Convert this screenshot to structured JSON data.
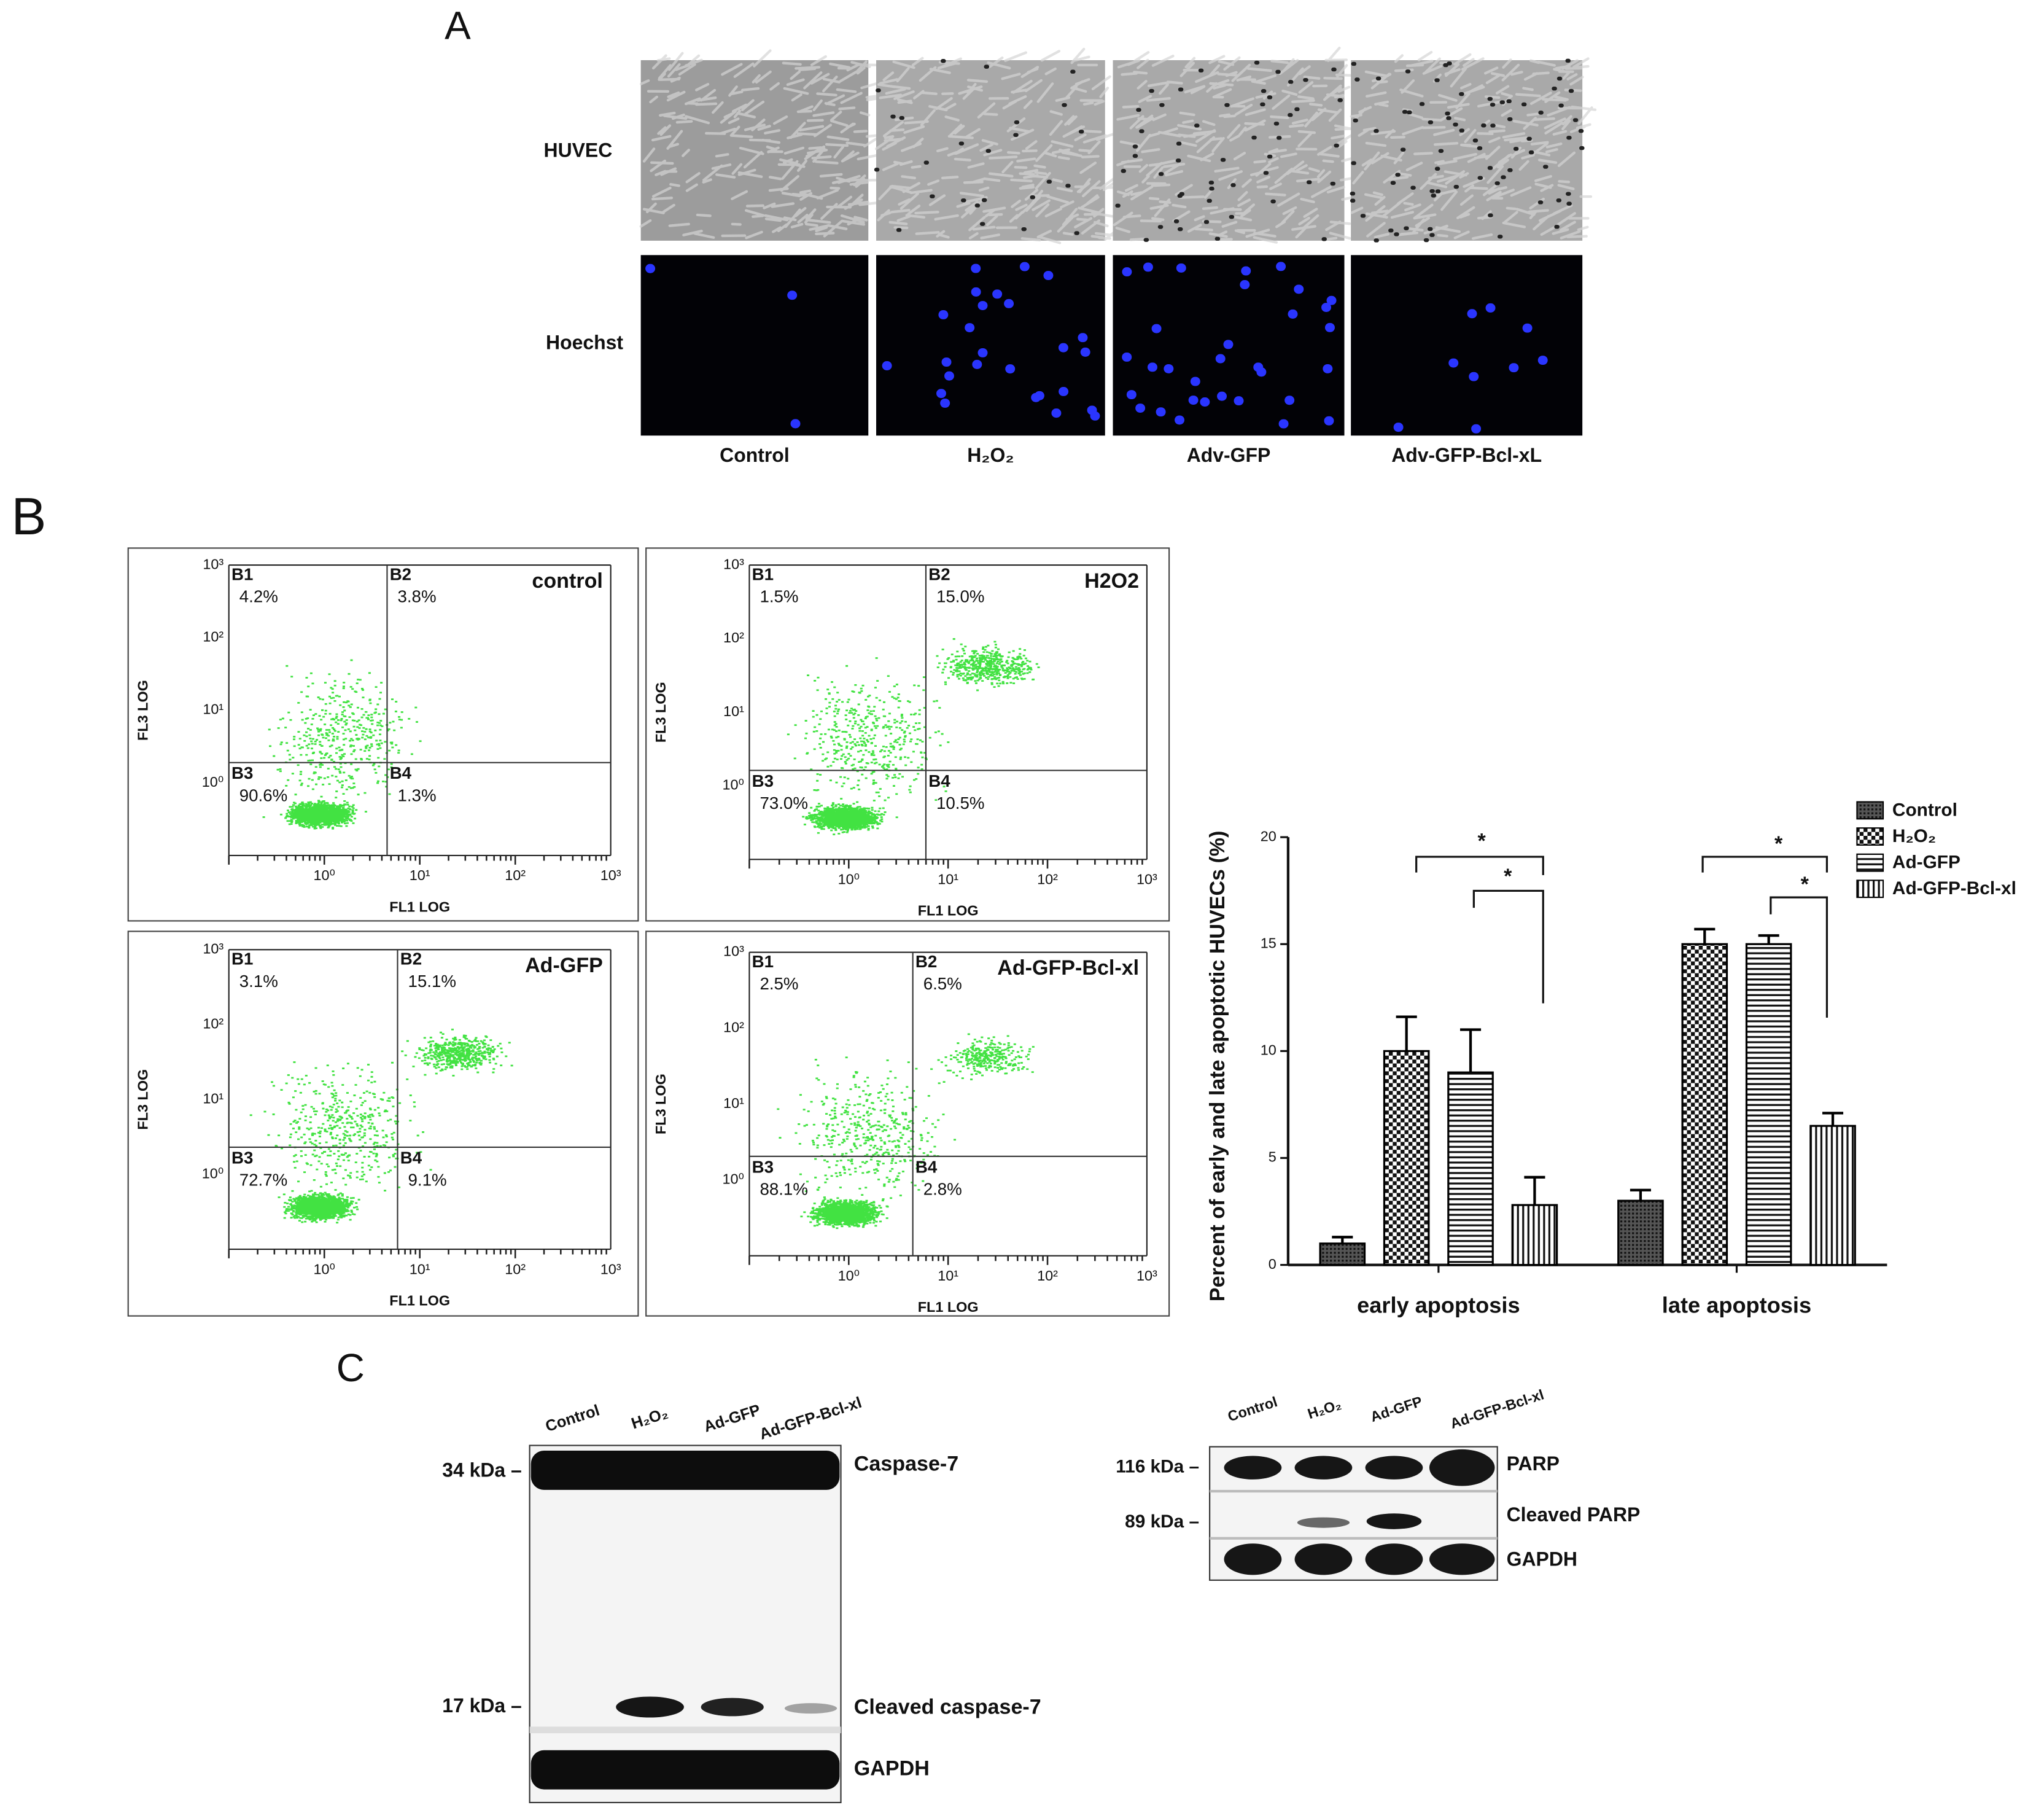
{
  "panel_labels": [
    "A",
    "B",
    "C"
  ],
  "panel_a": {
    "row_labels": [
      "HUVEC",
      "Hoechst"
    ],
    "columns": [
      "Control",
      "H₂O₂",
      "Adv-GFP",
      "Adv-GFP-Bcl-xL"
    ]
  },
  "flow_cytometry": {
    "x_label": "FL1 LOG",
    "y_label": "FL3 LOG",
    "ticks": [
      "10⁰",
      "10¹",
      "10²",
      "10³"
    ],
    "plots": [
      {
        "title": "control",
        "gates": [
          {
            "name": "B1",
            "value": "4.2%"
          },
          {
            "name": "B2",
            "value": "3.8%"
          },
          {
            "name": "B3",
            "value": "90.6%"
          },
          {
            "name": "B4",
            "value": "1.3%"
          }
        ]
      },
      {
        "title": "H2O2",
        "gates": [
          {
            "name": "B1",
            "value": "1.5%"
          },
          {
            "name": "B2",
            "value": "15.0%"
          },
          {
            "name": "B3",
            "value": "73.0%"
          },
          {
            "name": "B4",
            "value": "10.5%"
          }
        ]
      },
      {
        "title": "Ad-GFP",
        "gates": [
          {
            "name": "B1",
            "value": "3.1%"
          },
          {
            "name": "B2",
            "value": "15.1%"
          },
          {
            "name": "B3",
            "value": "72.7%"
          },
          {
            "name": "B4",
            "value": "9.1%"
          }
        ]
      },
      {
        "title": "Ad-GFP-Bcl-xl",
        "gates": [
          {
            "name": "B1",
            "value": "2.5%"
          },
          {
            "name": "B2",
            "value": "6.5%"
          },
          {
            "name": "B3",
            "value": "88.1%"
          },
          {
            "name": "B4",
            "value": "2.8%"
          }
        ]
      }
    ]
  },
  "chart_data": {
    "type": "bar",
    "y_label": "Percent of early and late apoptotic HUVECs (%)",
    "categories": [
      "early apoptosis",
      "late apoptosis"
    ],
    "series": [
      {
        "name": "Control",
        "color": "#000000",
        "pattern": "dense",
        "values": [
          1,
          3
        ],
        "errors": [
          0.3,
          0.5
        ]
      },
      {
        "name": "H₂O₂",
        "color": "#000000",
        "pattern": "checker",
        "values": [
          10,
          15
        ],
        "errors": [
          1.6,
          0.7
        ]
      },
      {
        "name": "Ad-GFP",
        "color": "#000000",
        "pattern": "hlines",
        "values": [
          9,
          15
        ],
        "errors": [
          2.0,
          0.4
        ]
      },
      {
        "name": "Ad-GFP-Bcl-xl",
        "color": "#000000",
        "pattern": "vlines",
        "values": [
          2.8,
          6.5
        ],
        "errors": [
          1.3,
          0.6
        ]
      }
    ],
    "ylim": [
      0,
      20
    ],
    "yticks": [
      0,
      5,
      10,
      15,
      20
    ],
    "annotations": [
      "*",
      "*",
      "*",
      "*"
    ]
  },
  "panel_c": {
    "lanes": [
      "Control",
      "H₂O₂",
      "Ad-GFP",
      "Ad-GFP-Bcl-xl"
    ],
    "left": {
      "markers": [
        "34 kDa –",
        "17 kDa –"
      ],
      "bands": [
        "Caspase-7",
        "Cleaved caspase-7",
        "GAPDH"
      ]
    },
    "right": {
      "markers": [
        "116 kDa –",
        "89 kDa –"
      ],
      "bands": [
        "PARP",
        "Cleaved PARP",
        "GAPDH"
      ]
    }
  }
}
